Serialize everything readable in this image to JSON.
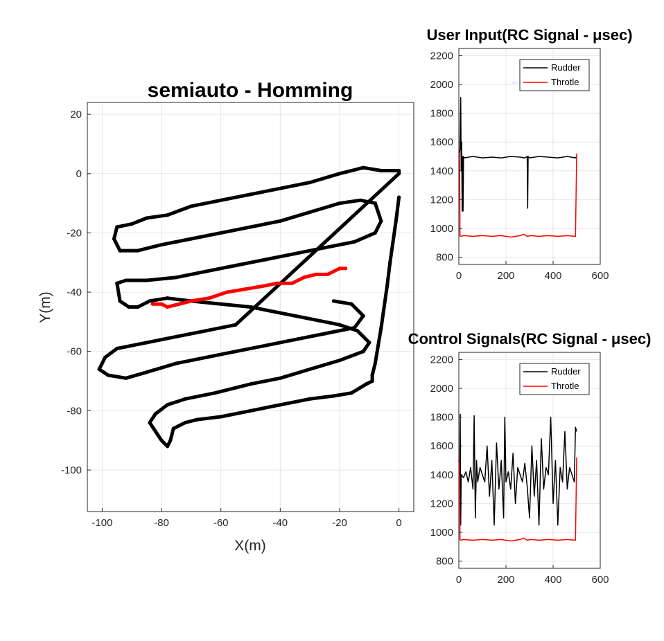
{
  "colors": {
    "black": "#000000",
    "red": "#ff0000",
    "grid": "#e6e6e6",
    "axis": "#262626"
  },
  "chart_data": [
    {
      "type": "scatter",
      "title": "semiauto - Homming",
      "xlabel": "X(m)",
      "ylabel": "Y(m)",
      "xlim": [
        -105,
        5
      ],
      "ylim": [
        -114,
        24
      ],
      "xticks": [
        -100,
        -80,
        -60,
        -40,
        -20,
        0
      ],
      "yticks": [
        20,
        0,
        -20,
        -40,
        -60,
        -80,
        -100
      ],
      "grid": true,
      "series": [
        {
          "color": "#000000",
          "points": [
            [
              0,
              -8
            ],
            [
              -1,
              -16
            ],
            [
              -2,
              -23
            ],
            [
              -3,
              -30
            ],
            [
              -4,
              -38
            ],
            [
              -5,
              -45
            ],
            [
              -6,
              -52
            ],
            [
              -7,
              -58
            ],
            [
              -8,
              -64
            ],
            [
              -9,
              -68
            ],
            [
              -9,
              -70
            ],
            [
              -11,
              -71
            ],
            [
              -16,
              -74
            ],
            [
              -22,
              -75
            ],
            [
              -30,
              -76
            ],
            [
              -40,
              -78
            ],
            [
              -50,
              -80
            ],
            [
              -60,
              -82
            ],
            [
              -68,
              -83
            ],
            [
              -72,
              -84
            ],
            [
              -76,
              -86
            ],
            [
              -77,
              -90
            ],
            [
              -78,
              -92
            ],
            [
              -80,
              -90
            ],
            [
              -82,
              -87
            ],
            [
              -84,
              -84
            ],
            [
              -82,
              -81
            ],
            [
              -78,
              -78
            ],
            [
              -72,
              -76
            ],
            [
              -62,
              -74
            ],
            [
              -50,
              -71
            ],
            [
              -40,
              -69
            ],
            [
              -30,
              -66
            ],
            [
              -20,
              -63
            ],
            [
              -12,
              -60
            ],
            [
              -10,
              -57
            ],
            [
              -14,
              -53
            ],
            [
              -20,
              -51
            ],
            [
              -30,
              -49
            ],
            [
              -40,
              -47
            ],
            [
              -50,
              -45
            ],
            [
              -60,
              -44
            ],
            [
              -70,
              -43
            ],
            [
              -78,
              -42
            ],
            [
              -84,
              -43
            ],
            [
              -88,
              -45
            ],
            [
              -91,
              -45
            ],
            [
              -94,
              -43
            ],
            [
              -95,
              -37
            ],
            [
              -92,
              -36
            ],
            [
              -85,
              -36
            ],
            [
              -75,
              -35
            ],
            [
              -65,
              -33
            ],
            [
              -55,
              -31
            ],
            [
              -45,
              -29
            ],
            [
              -35,
              -27
            ],
            [
              -25,
              -25
            ],
            [
              -15,
              -23
            ],
            [
              -8,
              -20
            ],
            [
              -6,
              -16
            ],
            [
              -8,
              -10
            ],
            [
              -13,
              -9
            ],
            [
              -20,
              -10
            ],
            [
              -30,
              -13
            ],
            [
              -40,
              -16
            ],
            [
              -50,
              -18
            ],
            [
              -60,
              -20
            ],
            [
              -70,
              -22
            ],
            [
              -80,
              -24
            ],
            [
              -88,
              -26
            ],
            [
              -94,
              -26
            ],
            [
              -96,
              -22
            ],
            [
              -95,
              -18
            ],
            [
              -90,
              -17
            ],
            [
              -85,
              -15
            ],
            [
              -78,
              -14
            ],
            [
              -70,
              -11
            ],
            [
              -60,
              -9
            ],
            [
              -50,
              -7
            ],
            [
              -40,
              -5
            ],
            [
              -30,
              -3
            ],
            [
              -20,
              0
            ],
            [
              -12,
              2
            ],
            [
              -6,
              1
            ],
            [
              -2,
              1
            ],
            [
              0,
              1
            ],
            [
              0,
              0
            ],
            [
              -55,
              -51
            ],
            [
              -65,
              -53
            ],
            [
              -75,
              -55
            ],
            [
              -85,
              -57
            ],
            [
              -95,
              -59
            ],
            [
              -99,
              -62
            ],
            [
              -101,
              -66
            ],
            [
              -98,
              -68
            ],
            [
              -92,
              -69
            ],
            [
              -85,
              -67
            ],
            [
              -75,
              -64
            ],
            [
              -65,
              -62
            ],
            [
              -55,
              -60
            ],
            [
              -45,
              -58
            ],
            [
              -35,
              -56
            ],
            [
              -25,
              -54
            ],
            [
              -15,
              -52
            ],
            [
              -12,
              -48
            ],
            [
              -16,
              -44
            ],
            [
              -22,
              -43
            ]
          ]
        },
        {
          "color": "#ff0000",
          "points": [
            [
              -83,
              -44
            ],
            [
              -80,
              -44
            ],
            [
              -78,
              -45
            ],
            [
              -74,
              -44
            ],
            [
              -70,
              -43
            ],
            [
              -64,
              -42
            ],
            [
              -58,
              -40
            ],
            [
              -52,
              -39
            ],
            [
              -46,
              -38
            ],
            [
              -41,
              -37
            ],
            [
              -36,
              -37
            ],
            [
              -32,
              -35
            ],
            [
              -28,
              -34
            ],
            [
              -24,
              -34
            ],
            [
              -20,
              -32
            ],
            [
              -18,
              -32
            ]
          ]
        }
      ]
    },
    {
      "type": "line",
      "title": "User Input(RC Signal - μsec)",
      "xlim": [
        0,
        600
      ],
      "ylim": [
        750,
        2250
      ],
      "xticks": [
        0,
        200,
        400,
        600
      ],
      "yticks": [
        800,
        1000,
        1200,
        1400,
        1600,
        1800,
        2000,
        2200
      ],
      "grid": true,
      "legend": "top-right",
      "series": [
        {
          "name": "Rudder",
          "color": "#000000",
          "x": [
            0,
            5,
            8,
            10,
            12,
            14,
            16,
            18,
            20,
            22,
            60,
            100,
            140,
            180,
            220,
            260,
            280,
            290,
            292,
            294,
            300,
            340,
            380,
            420,
            460,
            495,
            500
          ],
          "y": [
            1500,
            1550,
            1910,
            1400,
            1600,
            1120,
            1500,
            1120,
            1500,
            1490,
            1500,
            1490,
            1495,
            1490,
            1500,
            1495,
            1490,
            1500,
            1140,
            1500,
            1490,
            1500,
            1495,
            1490,
            1500,
            1490,
            1500
          ]
        },
        {
          "name": "Throtle",
          "color": "#ff0000",
          "x": [
            0,
            3,
            5,
            8,
            20,
            60,
            100,
            140,
            180,
            220,
            260,
            275,
            290,
            305,
            340,
            380,
            420,
            460,
            490,
            495,
            500
          ],
          "y": [
            1520,
            1520,
            950,
            945,
            950,
            945,
            950,
            945,
            950,
            940,
            950,
            960,
            945,
            950,
            945,
            950,
            945,
            950,
            945,
            945,
            1520
          ]
        }
      ]
    },
    {
      "type": "line",
      "title": "Control Signals(RC Signal - μsec)",
      "xlim": [
        0,
        600
      ],
      "ylim": [
        750,
        2250
      ],
      "xticks": [
        0,
        200,
        400,
        600
      ],
      "yticks": [
        800,
        1000,
        1200,
        1400,
        1600,
        1800,
        2000,
        2200
      ],
      "grid": true,
      "legend": "top-right",
      "series": [
        {
          "name": "Rudder",
          "color": "#000000",
          "x": [
            0,
            4,
            6,
            8,
            10,
            20,
            30,
            40,
            50,
            60,
            65,
            70,
            75,
            80,
            90,
            100,
            110,
            120,
            130,
            140,
            150,
            160,
            170,
            180,
            190,
            195,
            200,
            210,
            220,
            230,
            240,
            250,
            260,
            270,
            280,
            290,
            300,
            310,
            320,
            330,
            340,
            350,
            360,
            370,
            380,
            390,
            400,
            410,
            420,
            430,
            440,
            450,
            460,
            470,
            480,
            490,
            495,
            500
          ],
          "y": [
            1500,
            1400,
            1820,
            1050,
            1400,
            1380,
            1420,
            1350,
            1450,
            1300,
            1810,
            1100,
            1500,
            1350,
            1450,
            1400,
            1350,
            1600,
            1250,
            1500,
            1050,
            1620,
            1300,
            1500,
            1100,
            1800,
            1350,
            1420,
            1300,
            1550,
            1200,
            1450,
            1400,
            1350,
            1480,
            1320,
            1100,
            1600,
            1250,
            1500,
            1050,
            1650,
            1300,
            1450,
            1400,
            1800,
            1200,
            1500,
            1050,
            1450,
            1350,
            1700,
            1300,
            1450,
            1400,
            1350,
            1730,
            1700
          ]
        },
        {
          "name": "Throtle",
          "color": "#ff0000",
          "x": [
            0,
            3,
            5,
            8,
            20,
            60,
            100,
            140,
            180,
            220,
            260,
            275,
            290,
            305,
            340,
            380,
            420,
            460,
            490,
            495,
            500
          ],
          "y": [
            1520,
            1520,
            950,
            945,
            950,
            945,
            950,
            945,
            950,
            940,
            950,
            960,
            945,
            950,
            945,
            950,
            945,
            950,
            945,
            945,
            1520
          ]
        }
      ]
    }
  ]
}
